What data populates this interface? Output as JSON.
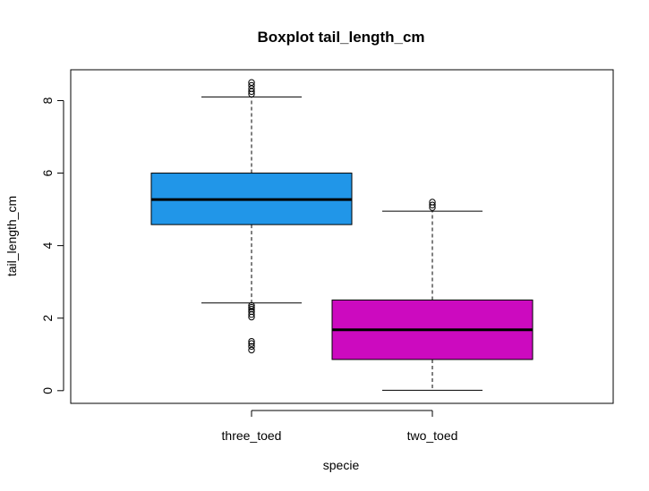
{
  "chart_data": {
    "type": "boxplot",
    "title": "Boxplot tail_length_cm",
    "xlabel": "specie",
    "ylabel": "tail_length_cm",
    "categories": [
      "three_toed",
      "two_toed"
    ],
    "ylim": [
      -0.35,
      8.85
    ],
    "yticks": [
      0,
      2,
      4,
      6,
      8
    ],
    "grid": false,
    "boxes": [
      {
        "category": "three_toed",
        "color": "#2196E8",
        "whisker_low": 2.42,
        "q1": 4.58,
        "median": 5.27,
        "q3": 6.0,
        "whisker_high": 8.1,
        "outliers": [
          1.12,
          1.22,
          1.3,
          1.36,
          2.03,
          2.1,
          2.18,
          2.25,
          2.3,
          2.35,
          8.18,
          8.25,
          8.33,
          8.42,
          8.5
        ]
      },
      {
        "category": "two_toed",
        "color": "#CC0ABF",
        "whisker_low": 0.01,
        "q1": 0.86,
        "median": 1.68,
        "q3": 2.5,
        "whisker_high": 4.95,
        "outliers": [
          5.05,
          5.12,
          5.2
        ]
      }
    ]
  }
}
